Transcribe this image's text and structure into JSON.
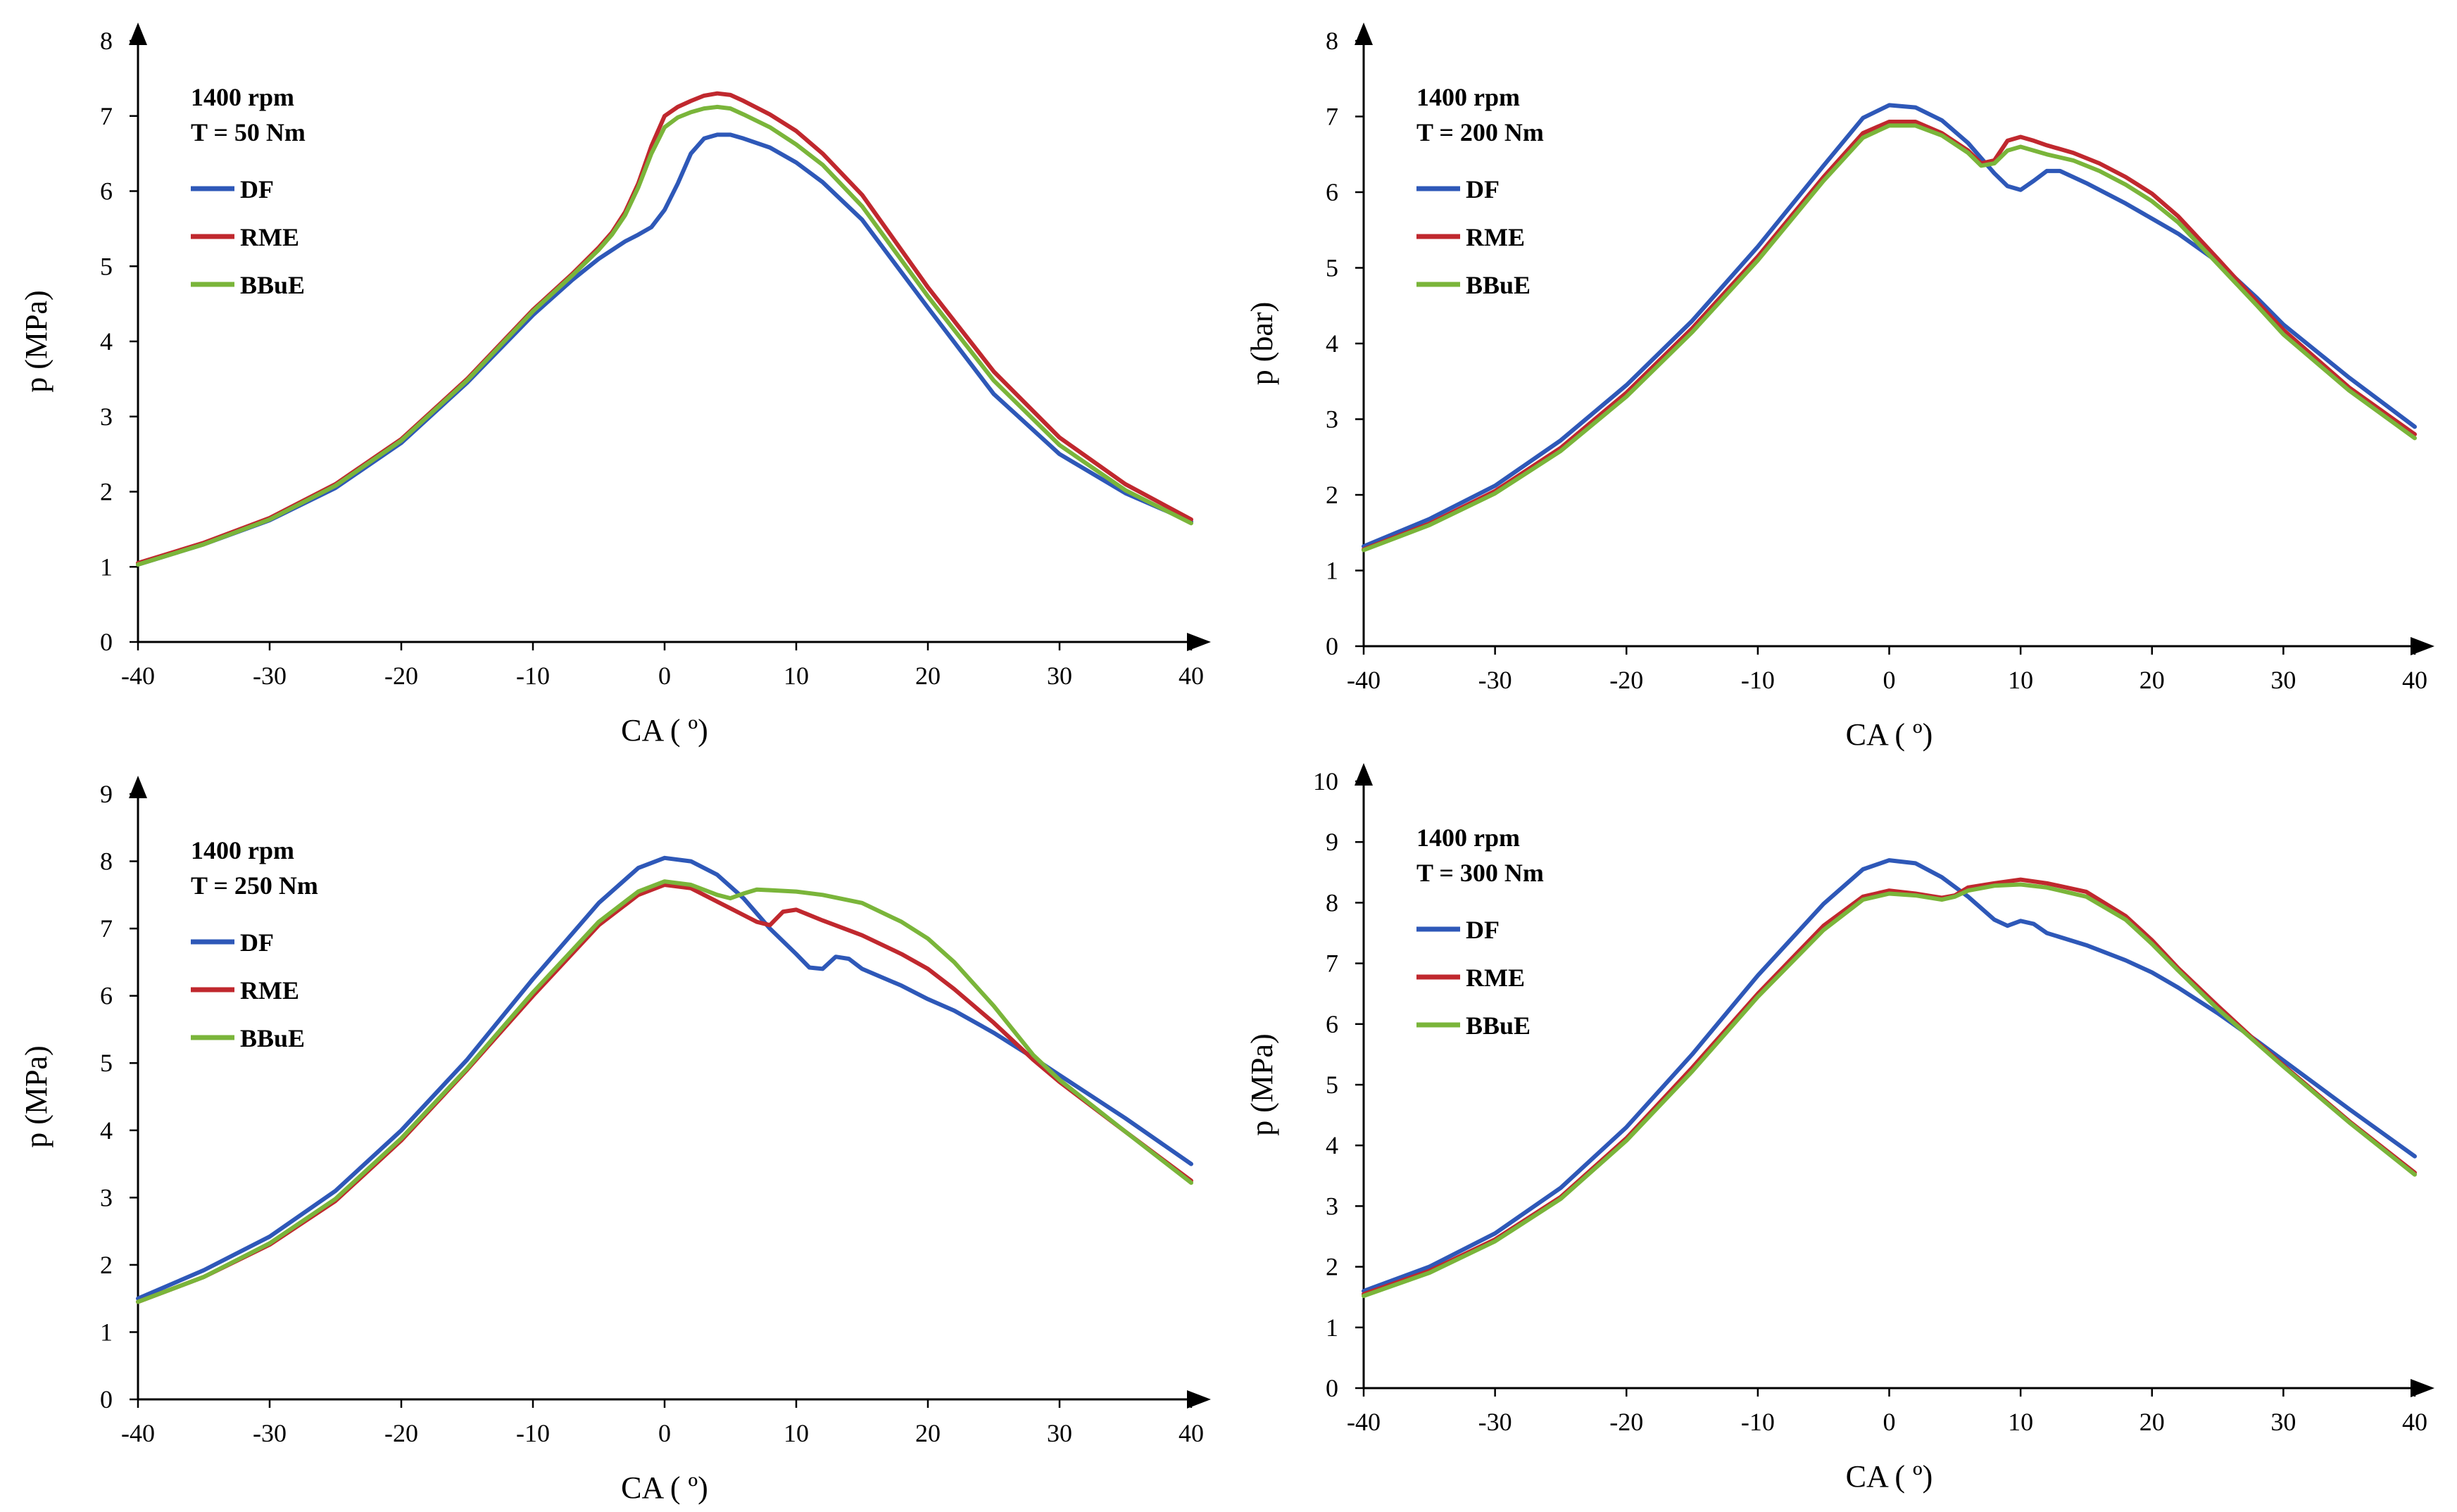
{
  "chart_data": [
    {
      "type": "line",
      "annotations": [
        "1400 rpm",
        "T = 50 Nm"
      ],
      "xlabel": "CA ( º)",
      "ylabel": "p (MPa)",
      "xlim": [
        -40,
        40
      ],
      "ylim": [
        0,
        8
      ],
      "xticks": [
        -40,
        -30,
        -20,
        -10,
        0,
        10,
        20,
        30,
        40
      ],
      "yticks": [
        0,
        1,
        2,
        3,
        4,
        5,
        6,
        7,
        8
      ],
      "legend_position": "upper-left",
      "grid": false,
      "series": [
        {
          "name": "DF",
          "color": "#2e58b8",
          "x": [
            -40,
            -35,
            -30,
            -25,
            -20,
            -15,
            -10,
            -7,
            -5,
            -3,
            -2,
            -1,
            0,
            1,
            2,
            3,
            4,
            5,
            6,
            8,
            10,
            12,
            15,
            20,
            25,
            30,
            35,
            40
          ],
          "y": [
            1.03,
            1.3,
            1.62,
            2.05,
            2.65,
            3.45,
            4.35,
            4.82,
            5.1,
            5.33,
            5.42,
            5.52,
            5.75,
            6.1,
            6.5,
            6.7,
            6.75,
            6.75,
            6.7,
            6.58,
            6.38,
            6.12,
            5.62,
            4.45,
            3.3,
            2.5,
            1.98,
            1.6
          ]
        },
        {
          "name": "RME",
          "color": "#c0282e",
          "x": [
            -40,
            -35,
            -30,
            -25,
            -20,
            -15,
            -10,
            -7,
            -5,
            -4,
            -3,
            -2,
            -1,
            0,
            1,
            2,
            3,
            4,
            5,
            6,
            8,
            10,
            12,
            15,
            20,
            25,
            30,
            35,
            40
          ],
          "y": [
            1.05,
            1.32,
            1.65,
            2.1,
            2.7,
            3.5,
            4.42,
            4.9,
            5.25,
            5.45,
            5.72,
            6.1,
            6.6,
            7.0,
            7.12,
            7.2,
            7.27,
            7.3,
            7.28,
            7.2,
            7.02,
            6.8,
            6.5,
            5.95,
            4.72,
            3.6,
            2.72,
            2.1,
            1.63
          ]
        },
        {
          "name": "BBuE",
          "color": "#7ab53a",
          "x": [
            -40,
            -35,
            -30,
            -25,
            -20,
            -15,
            -10,
            -7,
            -5,
            -4,
            -3,
            -2,
            -1,
            0,
            1,
            2,
            3,
            4,
            5,
            6,
            8,
            10,
            12,
            15,
            20,
            25,
            30,
            35,
            40
          ],
          "y": [
            1.03,
            1.3,
            1.63,
            2.08,
            2.68,
            3.48,
            4.4,
            4.88,
            5.22,
            5.42,
            5.68,
            6.05,
            6.5,
            6.85,
            6.98,
            7.05,
            7.1,
            7.12,
            7.1,
            7.02,
            6.85,
            6.62,
            6.35,
            5.8,
            4.6,
            3.48,
            2.62,
            2.02,
            1.58
          ]
        }
      ]
    },
    {
      "type": "line",
      "annotations": [
        "1400 rpm",
        "T = 200 Nm"
      ],
      "xlabel": "CA ( º)",
      "ylabel": "p (bar)",
      "xlim": [
        -40,
        40
      ],
      "ylim": [
        0,
        8
      ],
      "xticks": [
        -40,
        -30,
        -20,
        -10,
        0,
        10,
        20,
        30,
        40
      ],
      "yticks": [
        0,
        1,
        2,
        3,
        4,
        5,
        6,
        7,
        8
      ],
      "legend_position": "upper-left",
      "grid": false,
      "series": [
        {
          "name": "DF",
          "color": "#2e58b8",
          "x": [
            -40,
            -35,
            -30,
            -25,
            -20,
            -15,
            -10,
            -5,
            -2,
            0,
            2,
            4,
            6,
            7,
            8,
            9,
            10,
            11,
            12,
            13,
            15,
            18,
            20,
            22,
            25,
            28,
            30,
            35,
            40
          ],
          "y": [
            1.32,
            1.68,
            2.12,
            2.72,
            3.45,
            4.3,
            5.28,
            6.35,
            6.98,
            7.15,
            7.12,
            6.95,
            6.65,
            6.45,
            6.25,
            6.08,
            6.03,
            6.15,
            6.28,
            6.28,
            6.12,
            5.85,
            5.65,
            5.45,
            5.08,
            4.6,
            4.25,
            3.55,
            2.9
          ]
        },
        {
          "name": "RME",
          "color": "#c0282e",
          "x": [
            -40,
            -35,
            -30,
            -25,
            -20,
            -15,
            -10,
            -5,
            -2,
            0,
            2,
            4,
            6,
            7,
            8,
            9,
            10,
            11,
            12,
            14,
            16,
            18,
            20,
            22,
            25,
            28,
            30,
            35,
            40
          ],
          "y": [
            1.28,
            1.62,
            2.05,
            2.62,
            3.35,
            4.2,
            5.15,
            6.2,
            6.78,
            6.93,
            6.93,
            6.78,
            6.55,
            6.38,
            6.42,
            6.68,
            6.73,
            6.68,
            6.62,
            6.52,
            6.38,
            6.2,
            5.98,
            5.68,
            5.12,
            4.55,
            4.18,
            3.42,
            2.8
          ]
        },
        {
          "name": "BBuE",
          "color": "#7ab53a",
          "x": [
            -40,
            -35,
            -30,
            -25,
            -20,
            -15,
            -10,
            -5,
            -2,
            0,
            2,
            4,
            6,
            7,
            8,
            9,
            10,
            11,
            12,
            14,
            16,
            18,
            20,
            22,
            25,
            28,
            30,
            35,
            40
          ],
          "y": [
            1.27,
            1.6,
            2.02,
            2.58,
            3.3,
            4.15,
            5.1,
            6.15,
            6.72,
            6.88,
            6.88,
            6.75,
            6.52,
            6.35,
            6.38,
            6.55,
            6.6,
            6.55,
            6.5,
            6.42,
            6.28,
            6.1,
            5.88,
            5.6,
            5.05,
            4.5,
            4.12,
            3.38,
            2.75
          ]
        }
      ]
    },
    {
      "type": "line",
      "annotations": [
        "1400 rpm",
        "T = 250 Nm"
      ],
      "xlabel": "CA ( º)",
      "ylabel": "p (MPa)",
      "xlim": [
        -40,
        40
      ],
      "ylim": [
        0,
        9
      ],
      "xticks": [
        -40,
        -30,
        -20,
        -10,
        0,
        10,
        20,
        30,
        40
      ],
      "yticks": [
        0,
        1,
        2,
        3,
        4,
        5,
        6,
        7,
        8,
        9
      ],
      "legend_position": "upper-left",
      "grid": false,
      "series": [
        {
          "name": "DF",
          "color": "#2e58b8",
          "x": [
            -40,
            -35,
            -30,
            -25,
            -20,
            -15,
            -10,
            -5,
            -2,
            0,
            2,
            4,
            6,
            8,
            10,
            11,
            12,
            13,
            14,
            15,
            18,
            20,
            22,
            25,
            28,
            30,
            35,
            40
          ],
          "y": [
            1.5,
            1.92,
            2.42,
            3.1,
            4.0,
            5.05,
            6.25,
            7.38,
            7.9,
            8.05,
            8.0,
            7.8,
            7.45,
            7.0,
            6.62,
            6.42,
            6.4,
            6.58,
            6.55,
            6.4,
            6.15,
            5.95,
            5.78,
            5.45,
            5.08,
            4.82,
            4.18,
            3.5
          ]
        },
        {
          "name": "RME",
          "color": "#c0282e",
          "x": [
            -40,
            -35,
            -30,
            -25,
            -20,
            -15,
            -10,
            -5,
            -2,
            0,
            2,
            4,
            5,
            6,
            7,
            8,
            9,
            10,
            12,
            15,
            18,
            20,
            22,
            25,
            28,
            30,
            35,
            40
          ],
          "y": [
            1.45,
            1.82,
            2.3,
            2.95,
            3.85,
            4.9,
            6.0,
            7.05,
            7.5,
            7.65,
            7.6,
            7.4,
            7.3,
            7.2,
            7.1,
            7.05,
            7.25,
            7.28,
            7.12,
            6.9,
            6.62,
            6.4,
            6.1,
            5.6,
            5.05,
            4.72,
            3.98,
            3.25
          ]
        },
        {
          "name": "BBuE",
          "color": "#7ab53a",
          "x": [
            -40,
            -35,
            -30,
            -25,
            -20,
            -15,
            -10,
            -5,
            -2,
            0,
            2,
            4,
            5,
            6,
            7,
            8,
            10,
            12,
            15,
            18,
            20,
            22,
            25,
            28,
            30,
            35,
            40
          ],
          "y": [
            1.45,
            1.82,
            2.32,
            2.98,
            3.88,
            4.92,
            6.05,
            7.1,
            7.55,
            7.7,
            7.65,
            7.5,
            7.45,
            7.52,
            7.58,
            7.57,
            7.55,
            7.5,
            7.38,
            7.1,
            6.85,
            6.5,
            5.85,
            5.12,
            4.75,
            3.98,
            3.22
          ]
        }
      ]
    },
    {
      "type": "line",
      "annotations": [
        "1400 rpm",
        "T = 300 Nm"
      ],
      "xlabel": "CA ( º)",
      "ylabel": "p (MPa)",
      "xlim": [
        -40,
        40
      ],
      "ylim": [
        0,
        10
      ],
      "xticks": [
        -40,
        -30,
        -20,
        -10,
        0,
        10,
        20,
        30,
        40
      ],
      "yticks": [
        0,
        1,
        2,
        3,
        4,
        5,
        6,
        7,
        8,
        9,
        10
      ],
      "legend_position": "upper-left",
      "grid": false,
      "series": [
        {
          "name": "DF",
          "color": "#2e58b8",
          "x": [
            -40,
            -35,
            -30,
            -25,
            -20,
            -15,
            -10,
            -5,
            -2,
            0,
            2,
            4,
            6,
            8,
            9,
            10,
            11,
            12,
            15,
            18,
            20,
            22,
            25,
            28,
            30,
            35,
            40
          ],
          "y": [
            1.6,
            2.0,
            2.55,
            3.3,
            4.3,
            5.5,
            6.8,
            7.98,
            8.55,
            8.7,
            8.65,
            8.42,
            8.1,
            7.72,
            7.62,
            7.7,
            7.65,
            7.5,
            7.3,
            7.05,
            6.85,
            6.6,
            6.18,
            5.72,
            5.4,
            4.6,
            3.82
          ]
        },
        {
          "name": "RME",
          "color": "#c0282e",
          "x": [
            -40,
            -35,
            -30,
            -25,
            -20,
            -15,
            -10,
            -5,
            -2,
            0,
            2,
            4,
            5,
            6,
            8,
            10,
            12,
            15,
            18,
            20,
            22,
            25,
            28,
            30,
            35,
            40
          ],
          "y": [
            1.55,
            1.93,
            2.45,
            3.15,
            4.12,
            5.28,
            6.5,
            7.62,
            8.1,
            8.2,
            8.15,
            8.08,
            8.12,
            8.25,
            8.32,
            8.38,
            8.32,
            8.18,
            7.78,
            7.38,
            6.92,
            6.3,
            5.7,
            5.32,
            4.4,
            3.55
          ]
        },
        {
          "name": "BBuE",
          "color": "#7ab53a",
          "x": [
            -40,
            -35,
            -30,
            -25,
            -20,
            -15,
            -10,
            -5,
            -2,
            0,
            2,
            4,
            5,
            6,
            8,
            10,
            12,
            15,
            18,
            20,
            22,
            25,
            28,
            30,
            35,
            40
          ],
          "y": [
            1.52,
            1.9,
            2.42,
            3.12,
            4.08,
            5.22,
            6.45,
            7.55,
            8.05,
            8.15,
            8.12,
            8.05,
            8.1,
            8.2,
            8.28,
            8.3,
            8.25,
            8.1,
            7.72,
            7.32,
            6.88,
            6.25,
            5.68,
            5.3,
            4.38,
            3.52
          ]
        }
      ]
    }
  ]
}
